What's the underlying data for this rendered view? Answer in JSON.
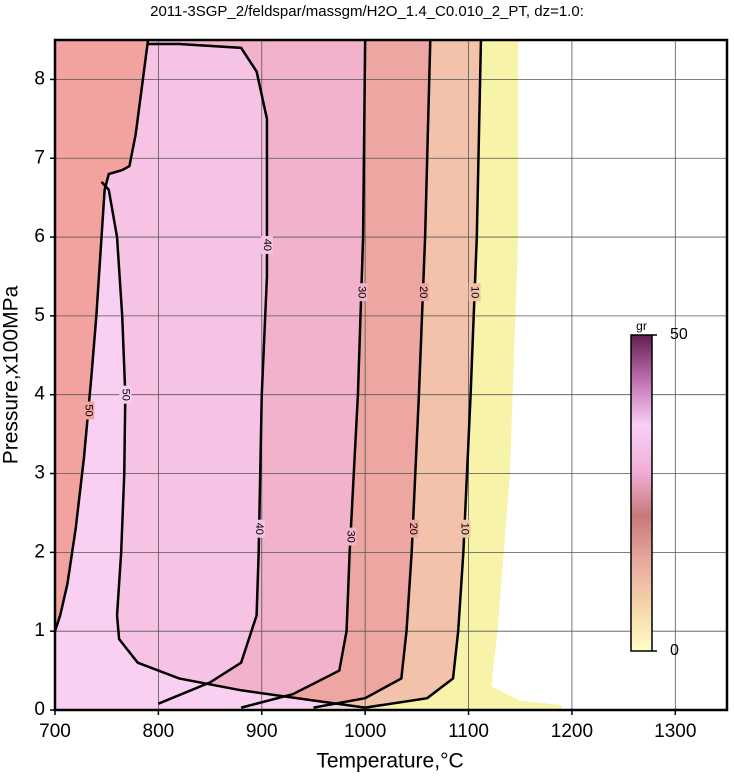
{
  "chart_data": {
    "type": "contour",
    "title": "2011-3SGP_2/feldspar/massgm/H2O_1.4_C0.010_2_PT, dz=1.0:",
    "xlabel": "Temperature,°C",
    "ylabel": "Pressure,x100MPa",
    "xlim": [
      700,
      1350
    ],
    "ylim": [
      0,
      8.5
    ],
    "xticks": [
      700,
      800,
      900,
      1000,
      1100,
      1200,
      1300
    ],
    "yticks": [
      0,
      1,
      2,
      3,
      4,
      5,
      6,
      7,
      8
    ],
    "grid": true,
    "domain": {
      "color": "#f7f3a8",
      "x": [
        1148,
        1148,
        1140,
        1128,
        1122,
        1150,
        1190,
        1190
      ],
      "y": [
        8.5,
        6,
        3,
        1,
        0.3,
        0.12,
        0.06,
        0
      ]
    },
    "contours": [
      {
        "level": 10,
        "fill": "#f3c2aa",
        "x": [
          1112,
          1108,
          1102,
          1095,
          1090,
          1085,
          1060,
          1000
        ],
        "y": [
          8.5,
          6,
          4,
          2,
          1,
          0.4,
          0.15,
          0.03
        ]
      },
      {
        "level": 20,
        "fill": "#eea6a2",
        "x": [
          1063,
          1058,
          1052,
          1045,
          1040,
          1035,
          1000,
          950
        ],
        "y": [
          8.5,
          6,
          4,
          2,
          1,
          0.4,
          0.15,
          0.03
        ]
      },
      {
        "level": 30,
        "fill": "#f2b2cc",
        "x": [
          1000,
          998,
          993,
          985,
          982,
          975,
          930,
          880
        ],
        "y": [
          8.5,
          6,
          4,
          2,
          1,
          0.5,
          0.2,
          0.03
        ]
      },
      {
        "level": 40,
        "fill": "#f7c3e4",
        "x": [
          790,
          820,
          880,
          895,
          905,
          905,
          900,
          897,
          895,
          880,
          850,
          800
        ],
        "y": [
          8.45,
          8.45,
          8.4,
          8.1,
          7.5,
          5.5,
          4,
          2,
          1.2,
          0.6,
          0.35,
          0.08
        ]
      },
      {
        "level": 50,
        "fill": "#f9d0f2",
        "x": [
          745,
          752,
          760,
          765,
          768,
          767,
          764,
          760,
          762,
          780,
          820,
          880,
          950,
          1000
        ],
        "y": [
          6.7,
          6.6,
          6,
          5,
          4,
          3,
          2,
          1.2,
          0.9,
          0.6,
          0.4,
          0.25,
          0.12,
          0.03
        ]
      },
      {
        "level": 50,
        "fill": "#f2a3a0",
        "x": [
          790,
          785,
          778,
          772,
          765,
          752,
          748,
          745,
          740,
          735,
          728,
          720,
          712,
          705,
          700
        ],
        "y": [
          8.5,
          8,
          7.3,
          6.9,
          6.85,
          6.8,
          6.6,
          6,
          5,
          4.2,
          3.2,
          2.3,
          1.6,
          1.2,
          1.0
        ]
      }
    ],
    "colorbar": {
      "label": "gr",
      "lim": [
        0,
        50
      ],
      "ticks": [
        0,
        50
      ],
      "colors": [
        "#ffffc8",
        "#f5d5a8",
        "#e8a8a0",
        "#c87878",
        "#f0b0d8",
        "#f8d0f4",
        "#c070b0",
        "#602050"
      ]
    }
  }
}
